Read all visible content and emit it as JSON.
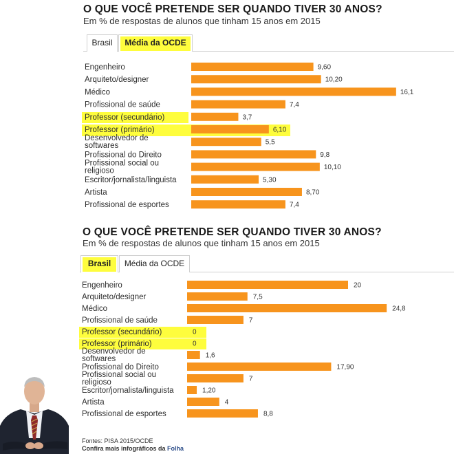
{
  "panels": [
    {
      "title": "O QUE VOCÊ PRETENDE SER QUANDO TIVER 30 ANOS?",
      "subtitle": "Em % de respostas de alunos que tinham 15 anos em 2015",
      "tabs": [
        {
          "label": "Brasil",
          "active": false
        },
        {
          "label": "Média da OCDE",
          "active": true
        }
      ],
      "highlight_color": "#fefd3d"
    },
    {
      "title": "O QUE VOCÊ PRETENDE SER QUANDO TIVER 30 ANOS?",
      "subtitle": "Em % de respostas de alunos que tinham 15 anos em 2015",
      "tabs": [
        {
          "label": "Brasil",
          "active": true
        },
        {
          "label": "Média da OCDE",
          "active": false
        }
      ],
      "highlight_color": "#fefd3d"
    }
  ],
  "chart_data": [
    {
      "type": "bar",
      "orientation": "horizontal",
      "bar_color": "#f7941d",
      "categories": [
        [
          "Engenheiro"
        ],
        [
          "Arquiteto/designer"
        ],
        [
          "Médico"
        ],
        [
          "Profissional de saúde"
        ],
        [
          "Professor (secundário)"
        ],
        [
          "Professor (primário)"
        ],
        [
          "Desenvolvedor de",
          "softwares"
        ],
        [
          "Profissional do Direito"
        ],
        [
          "Profissional social ou",
          "religioso"
        ],
        [
          "Escritor/jornalista/linguista"
        ],
        [
          "Artista"
        ],
        [
          "Profissional de esportes"
        ]
      ],
      "values": [
        9.6,
        10.2,
        16.1,
        7.4,
        3.7,
        6.1,
        5.5,
        9.8,
        10.1,
        5.3,
        8.7,
        7.4
      ],
      "value_labels": [
        "9,60",
        "10,20",
        "16,1",
        "7,4",
        "3,7",
        "6,10",
        "5,5",
        "9,8",
        "10,10",
        "5,30",
        "8,70",
        "7,4"
      ],
      "highlighted": [
        4,
        5
      ]
    },
    {
      "type": "bar",
      "orientation": "horizontal",
      "bar_color": "#f7941d",
      "categories": [
        [
          "Engenheiro"
        ],
        [
          "Arquiteto/designer"
        ],
        [
          "Médico"
        ],
        [
          "Profissional de saúde"
        ],
        [
          "Professor (secundário)"
        ],
        [
          "Professor (primário)"
        ],
        [
          "Desenvolvedor de",
          "softwares"
        ],
        [
          "Profissional do Direito"
        ],
        [
          "Profissional social ou",
          "religioso"
        ],
        [
          "Escritor/jornalista/linguista"
        ],
        [
          "Artista"
        ],
        [
          "Profissional de esportes"
        ]
      ],
      "values": [
        20,
        7.5,
        24.8,
        7,
        0,
        0,
        1.6,
        17.9,
        7,
        1.2,
        4,
        8.8
      ],
      "value_labels": [
        "20",
        "7,5",
        "24,8",
        "7",
        "0",
        "0",
        "1,6",
        "17,90",
        "7",
        "1,20",
        "4",
        "8,8"
      ],
      "highlighted": [
        4,
        5
      ]
    }
  ],
  "footer": {
    "line1": "Fontes: PISA 2015/OCDE",
    "line2_prefix": "Confira mais infográficos da",
    "line2_brand": "Folha"
  }
}
